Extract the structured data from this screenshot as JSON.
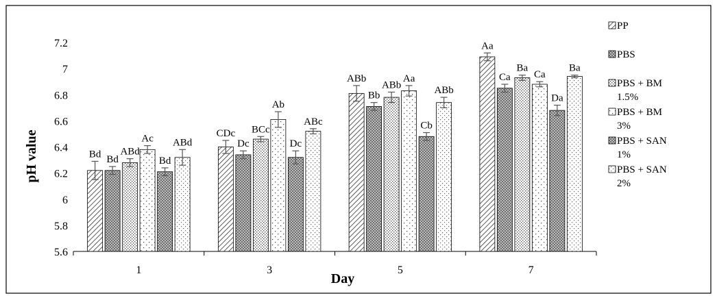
{
  "chart_data": {
    "type": "bar",
    "title": "",
    "xlabel": "Day",
    "ylabel": "pH value",
    "ylim": [
      5.6,
      7.2
    ],
    "yticks": [
      "5.6",
      "5.8",
      "6",
      "6.2",
      "6.4",
      "6.6",
      "6.8",
      "7",
      "7.2"
    ],
    "categories": [
      "1",
      "3",
      "5",
      "7"
    ],
    "legend_position": "right",
    "grid": false,
    "series": [
      {
        "name": "PP",
        "pattern": "diagonal-dense",
        "values": [
          6.22,
          6.4,
          6.81,
          7.09
        ],
        "errors": [
          0.07,
          0.05,
          0.06,
          0.03
        ],
        "labels": [
          "Bd",
          "CDc",
          "ABb",
          "Aa"
        ]
      },
      {
        "name": "PBS",
        "pattern": "crosshatch-dark",
        "values": [
          6.22,
          6.34,
          6.71,
          6.85
        ],
        "errors": [
          0.03,
          0.03,
          0.03,
          0.03
        ],
        "labels": [
          "Bd",
          "Dc",
          "Bb",
          "Ca"
        ]
      },
      {
        "name": "PBS + BM 1.5%",
        "pattern": "dots-dense",
        "values": [
          6.28,
          6.46,
          6.78,
          6.93
        ],
        "errors": [
          0.03,
          0.02,
          0.04,
          0.02
        ],
        "labels": [
          "ABd",
          "BCc",
          "ABb",
          "Ba"
        ]
      },
      {
        "name": "PBS + BM 3%",
        "pattern": "dots-sparse",
        "values": [
          6.38,
          6.61,
          6.83,
          6.88
        ],
        "errors": [
          0.03,
          0.06,
          0.04,
          0.02
        ],
        "labels": [
          "Ac",
          "Ab",
          "Aa",
          "Ca"
        ]
      },
      {
        "name": "PBS + SAN 1%",
        "pattern": "crosshatch-dark",
        "values": [
          6.21,
          6.32,
          6.48,
          6.68
        ],
        "errors": [
          0.03,
          0.05,
          0.03,
          0.04
        ],
        "labels": [
          "Bd",
          "Dc",
          "Cb",
          "Da"
        ]
      },
      {
        "name": "PBS + SAN 2%",
        "pattern": "dots-fine",
        "values": [
          6.32,
          6.52,
          6.74,
          6.94
        ],
        "errors": [
          0.06,
          0.02,
          0.04,
          0.01
        ],
        "labels": [
          "ABd",
          "ABc",
          "ABb",
          "Ba"
        ]
      }
    ],
    "legend_labels": [
      [
        "PP"
      ],
      [
        "PBS"
      ],
      [
        "PBS + BM",
        "1.5%"
      ],
      [
        "PBS + BM",
        "3%"
      ],
      [
        "PBS + SAN",
        "1%"
      ],
      [
        "PBS + SAN",
        "2%"
      ]
    ]
  }
}
